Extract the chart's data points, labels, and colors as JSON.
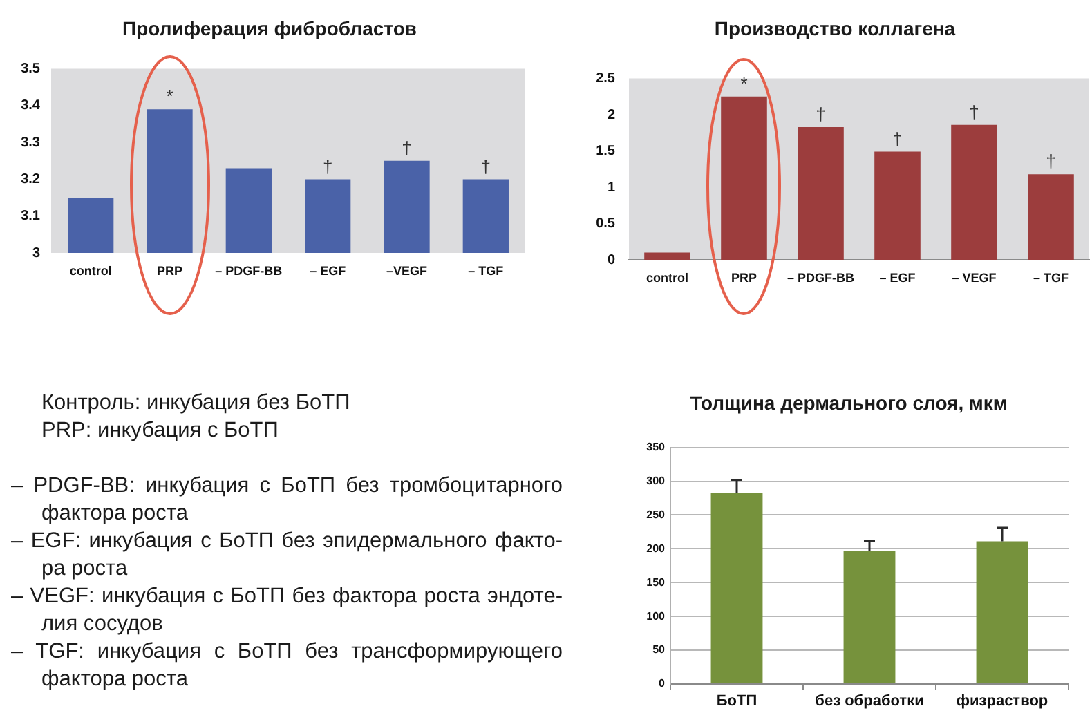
{
  "chart_data": [
    {
      "type": "bar",
      "title": "Пролиферация фибробластов",
      "categories": [
        "control",
        "PRP",
        "– PDGF-BB",
        "– EGF",
        "–VEGF",
        "– TGF"
      ],
      "values": [
        3.15,
        3.39,
        3.23,
        3.2,
        3.25,
        3.2
      ],
      "color": "#4a62a8",
      "ylim": [
        3,
        3.5
      ],
      "yticks": [
        3,
        3.1,
        3.2,
        3.3,
        3.4,
        3.5
      ],
      "annotations": [
        {
          "text": "*",
          "x": "PRP",
          "y": 3.39
        },
        {
          "text": "†",
          "x": "– EGF",
          "y": 3.2
        },
        {
          "text": "†",
          "x": "–VEGF",
          "y": 3.25
        },
        {
          "text": "†",
          "x": "– TGF",
          "y": 3.2
        }
      ]
    },
    {
      "type": "bar",
      "title": "Производство коллагена",
      "categories": [
        "control",
        "PRP",
        "– PDGF-BB",
        "– EGF",
        "– VEGF",
        "– TGF"
      ],
      "values": [
        0.1,
        2.25,
        1.83,
        1.49,
        1.86,
        1.18
      ],
      "color": "#9c3d3d",
      "ylim": [
        0,
        2.5
      ],
      "yticks": [
        0,
        0.5,
        1,
        1.5,
        2,
        2.5
      ],
      "annotations": [
        {
          "text": "*",
          "x": "PRP",
          "y": 2.25
        },
        {
          "text": "†",
          "x": "– PDGF-BB",
          "y": 1.83
        },
        {
          "text": "†",
          "x": "– EGF",
          "y": 1.49
        },
        {
          "text": "†",
          "x": "– VEGF",
          "y": 1.86
        },
        {
          "text": "†",
          "x": "– TGF",
          "y": 1.18
        }
      ]
    },
    {
      "type": "other",
      "annotations": [
        "Контроль: инкубация без БоТП",
        "PRP: инкубация с БоТП",
        "– PDGF-BB: инкубация с БоТП без тромбоцитарного фактора роста",
        "– EGF: инкубация с БоТП без эпидермального факто-ра роста",
        "– VEGF: инкубация с БоТП без фактора роста эндоте-лия сосудов",
        "– TGF: инкубация с БоТП без трансформирующего фактора роста"
      ]
    },
    {
      "type": "bar",
      "title": "Толщина дермального слоя, мкм",
      "categories": [
        "БоТП",
        "без обработки",
        "физраствор"
      ],
      "values": [
        283,
        197,
        211
      ],
      "errors": [
        [
          283,
          302
        ],
        [
          197,
          211
        ],
        [
          211,
          231
        ]
      ],
      "color": "#76923c",
      "ylim": [
        0,
        350
      ],
      "yticks": [
        0,
        50,
        100,
        150,
        200,
        250,
        300,
        350
      ],
      "grid": "y"
    }
  ]
}
